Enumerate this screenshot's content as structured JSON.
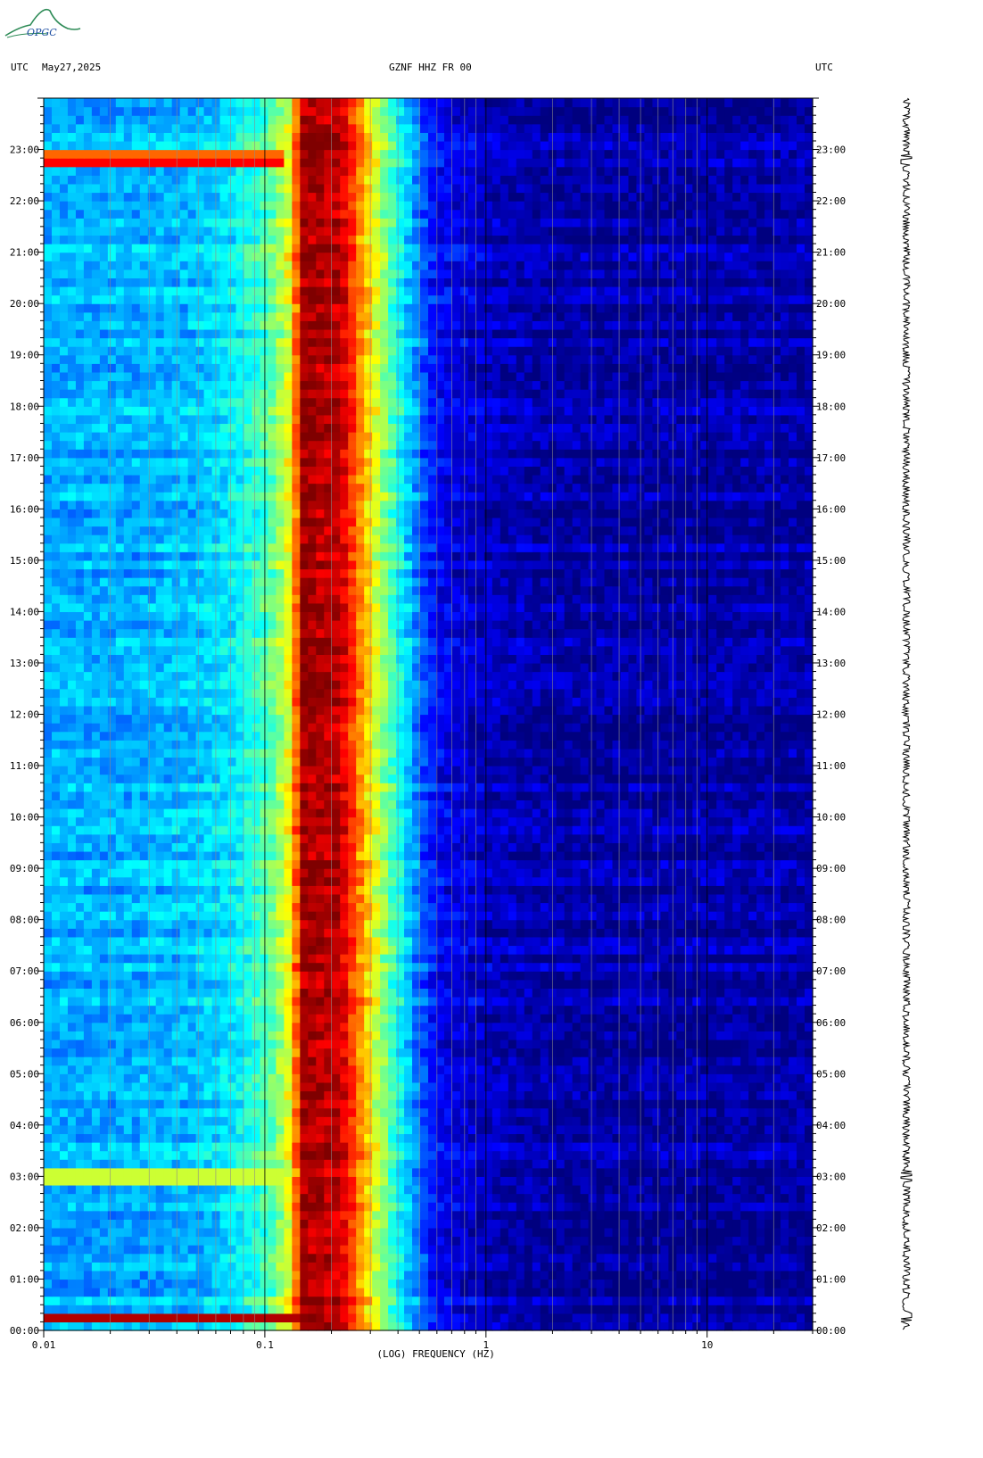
{
  "header": {
    "left_tz": "UTC",
    "date": "May27,2025",
    "station": "GZNF HHZ FR 00",
    "right_tz": "UTC"
  },
  "logo": {
    "text": "OPGC",
    "colors": {
      "arc": "#2e8b57",
      "text": "#1f4fa3"
    }
  },
  "chart_data": {
    "type": "heatmap",
    "title": "GZNF HHZ FR 00",
    "xlabel": "(LOG) FREQUENCY (HZ)",
    "xscale": "log",
    "xlim": [
      0.01,
      30
    ],
    "x_ticks": [
      {
        "value": 0.01,
        "label": "0.01"
      },
      {
        "value": 0.1,
        "label": "0.1"
      },
      {
        "value": 1,
        "label": "1"
      },
      {
        "value": 10,
        "label": "10"
      }
    ],
    "y_unit": "UTC hour",
    "ylim": [
      0,
      24
    ],
    "y_ticks": [
      {
        "value": 0,
        "label": "00:00"
      },
      {
        "value": 1,
        "label": "01:00"
      },
      {
        "value": 2,
        "label": "02:00"
      },
      {
        "value": 3,
        "label": "03:00"
      },
      {
        "value": 4,
        "label": "04:00"
      },
      {
        "value": 5,
        "label": "05:00"
      },
      {
        "value": 6,
        "label": "06:00"
      },
      {
        "value": 7,
        "label": "07:00"
      },
      {
        "value": 8,
        "label": "08:00"
      },
      {
        "value": 9,
        "label": "09:00"
      },
      {
        "value": 10,
        "label": "10:00"
      },
      {
        "value": 11,
        "label": "11:00"
      },
      {
        "value": 12,
        "label": "12:00"
      },
      {
        "value": 13,
        "label": "13:00"
      },
      {
        "value": 14,
        "label": "14:00"
      },
      {
        "value": 15,
        "label": "15:00"
      },
      {
        "value": 16,
        "label": "16:00"
      },
      {
        "value": 17,
        "label": "17:00"
      },
      {
        "value": 18,
        "label": "18:00"
      },
      {
        "value": 19,
        "label": "19:00"
      },
      {
        "value": 20,
        "label": "20:00"
      },
      {
        "value": 21,
        "label": "21:00"
      },
      {
        "value": 22,
        "label": "22:00"
      },
      {
        "value": 23,
        "label": "23:00"
      }
    ],
    "colormap": [
      "#00007f",
      "#0000ff",
      "#007fff",
      "#00ffff",
      "#7fff7f",
      "#ffff00",
      "#ff7f00",
      "#ff0000",
      "#7f0000"
    ],
    "spectrum_profile": [
      {
        "f": 0.01,
        "level": 0.3
      },
      {
        "f": 0.025,
        "level": 0.3
      },
      {
        "f": 0.05,
        "level": 0.32
      },
      {
        "f": 0.07,
        "level": 0.36
      },
      {
        "f": 0.09,
        "level": 0.42
      },
      {
        "f": 0.11,
        "level": 0.48
      },
      {
        "f": 0.13,
        "level": 0.62
      },
      {
        "f": 0.15,
        "level": 0.97
      },
      {
        "f": 0.22,
        "level": 0.94
      },
      {
        "f": 0.26,
        "level": 0.78
      },
      {
        "f": 0.32,
        "level": 0.58
      },
      {
        "f": 0.4,
        "level": 0.4
      },
      {
        "f": 0.5,
        "level": 0.24
      },
      {
        "f": 0.6,
        "level": 0.12
      },
      {
        "f": 1,
        "level": 0.07
      },
      {
        "f": 2,
        "level": 0.04
      },
      {
        "f": 30,
        "level": 0.04
      }
    ],
    "events": [
      {
        "hour": 0.25,
        "fmin": 0.01,
        "fmax": 0.14,
        "level": 0.95
      },
      {
        "hour": 3.0,
        "fmin": 0.01,
        "fmax": 0.12,
        "level": 0.7
      },
      {
        "hour": 22.8,
        "fmin": 0.01,
        "fmax": 0.12,
        "level": 0.95
      }
    ],
    "grid": true,
    "trace": {
      "position": "right",
      "orientation": "vertical"
    }
  }
}
